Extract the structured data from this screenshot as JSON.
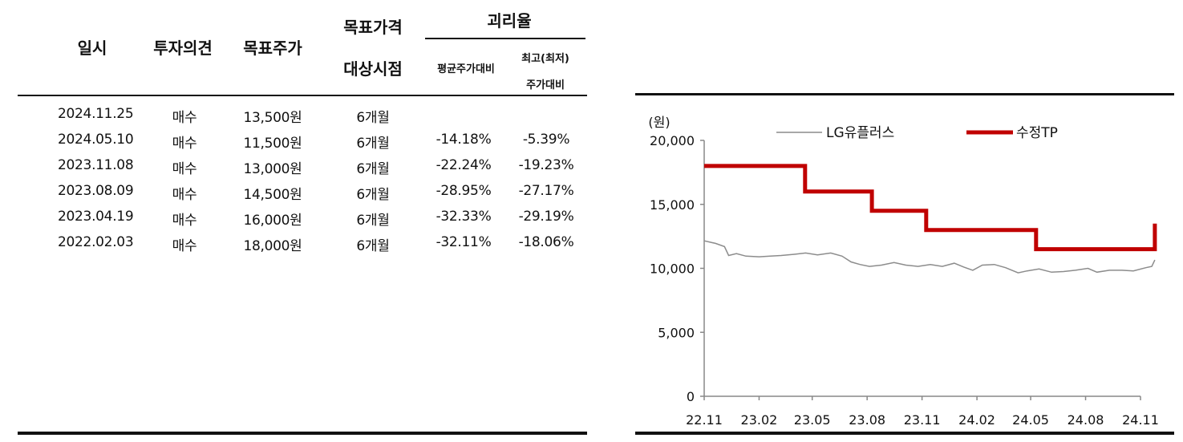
{
  "table": {
    "headers": {
      "date": "일시",
      "opinion": "투자의견",
      "target_price": "목표주가",
      "target_horizon_line1": "목표가격",
      "target_horizon_line2": "대상시점",
      "divergence": "괴리율",
      "vs_avg": "평균주가대비",
      "vs_highlow_line1": "최고(최저)",
      "vs_highlow_line2": "주가대비"
    },
    "rows": [
      {
        "date": "2024.11.25",
        "opinion": "매수",
        "target_price": "13,500원",
        "horizon": "6개월",
        "vs_avg": "",
        "vs_highlow": ""
      },
      {
        "date": "2024.05.10",
        "opinion": "매수",
        "target_price": "11,500원",
        "horizon": "6개월",
        "vs_avg": "-14.18%",
        "vs_highlow": "-5.39%"
      },
      {
        "date": "2023.11.08",
        "opinion": "매수",
        "target_price": "13,000원",
        "horizon": "6개월",
        "vs_avg": "-22.24%",
        "vs_highlow": "-19.23%"
      },
      {
        "date": "2023.08.09",
        "opinion": "매수",
        "target_price": "14,500원",
        "horizon": "6개월",
        "vs_avg": "-28.95%",
        "vs_highlow": "-27.17%"
      },
      {
        "date": "2023.04.19",
        "opinion": "매수",
        "target_price": "16,000원",
        "horizon": "6개월",
        "vs_avg": "-32.33%",
        "vs_highlow": "-29.19%"
      },
      {
        "date": "2022.02.03",
        "opinion": "매수",
        "target_price": "18,000원",
        "horizon": "6개월",
        "vs_avg": "-32.11%",
        "vs_highlow": "-18.06%"
      }
    ]
  },
  "chart_data": {
    "type": "line",
    "unit_label": "(원)",
    "xlim": [
      "2022-11",
      "2024-11"
    ],
    "x_ticks": [
      "22.11",
      "23.02",
      "23.05",
      "23.08",
      "23.11",
      "24.02",
      "24.05",
      "24.08",
      "24.11"
    ],
    "ylim": [
      0,
      20000
    ],
    "y_ticks": [
      0,
      5000,
      10000,
      15000,
      20000
    ],
    "y_tick_labels": [
      "0",
      "5,000",
      "10,000",
      "15,000",
      "20,000"
    ],
    "grid": false,
    "legend_position": "top",
    "series": [
      {
        "name": "LG유플러스",
        "color": "#8c8c8c",
        "style": "thin",
        "points": [
          [
            "2022-11-01",
            12150
          ],
          [
            "2022-11-20",
            11950
          ],
          [
            "2022-12-05",
            11700
          ],
          [
            "2022-12-12",
            11000
          ],
          [
            "2022-12-25",
            11150
          ],
          [
            "2023-01-10",
            10950
          ],
          [
            "2023-02-01",
            10900
          ],
          [
            "2023-02-20",
            10950
          ],
          [
            "2023-03-10",
            11000
          ],
          [
            "2023-04-01",
            11100
          ],
          [
            "2023-04-20",
            11200
          ],
          [
            "2023-05-10",
            11050
          ],
          [
            "2023-06-01",
            11200
          ],
          [
            "2023-06-20",
            10950
          ],
          [
            "2023-07-05",
            10500
          ],
          [
            "2023-07-20",
            10300
          ],
          [
            "2023-08-05",
            10150
          ],
          [
            "2023-08-25",
            10250
          ],
          [
            "2023-09-15",
            10450
          ],
          [
            "2023-10-05",
            10250
          ],
          [
            "2023-10-25",
            10150
          ],
          [
            "2023-11-15",
            10300
          ],
          [
            "2023-12-05",
            10150
          ],
          [
            "2023-12-25",
            10400
          ],
          [
            "2024-01-10",
            10100
          ],
          [
            "2024-01-25",
            9850
          ],
          [
            "2024-02-10",
            10250
          ],
          [
            "2024-03-01",
            10300
          ],
          [
            "2024-03-20",
            10050
          ],
          [
            "2024-04-10",
            9650
          ],
          [
            "2024-04-25",
            9800
          ],
          [
            "2024-05-15",
            9950
          ],
          [
            "2024-06-05",
            9700
          ],
          [
            "2024-06-25",
            9750
          ],
          [
            "2024-07-15",
            9850
          ],
          [
            "2024-08-05",
            10000
          ],
          [
            "2024-08-20",
            9700
          ],
          [
            "2024-09-10",
            9850
          ],
          [
            "2024-10-01",
            9850
          ],
          [
            "2024-10-20",
            9800
          ],
          [
            "2024-11-10",
            10050
          ],
          [
            "2024-11-20",
            10150
          ],
          [
            "2024-11-25",
            10650
          ]
        ]
      },
      {
        "name": "수정TP",
        "color": "#c00000",
        "style": "thick-step",
        "points": [
          [
            "2022-11-01",
            18000
          ],
          [
            "2023-04-19",
            18000
          ],
          [
            "2023-04-19",
            16000
          ],
          [
            "2023-08-09",
            16000
          ],
          [
            "2023-08-09",
            14500
          ],
          [
            "2023-11-08",
            14500
          ],
          [
            "2023-11-08",
            13000
          ],
          [
            "2024-05-10",
            13000
          ],
          [
            "2024-05-10",
            11500
          ],
          [
            "2024-11-25",
            11500
          ],
          [
            "2024-11-25",
            13500
          ]
        ]
      }
    ]
  }
}
